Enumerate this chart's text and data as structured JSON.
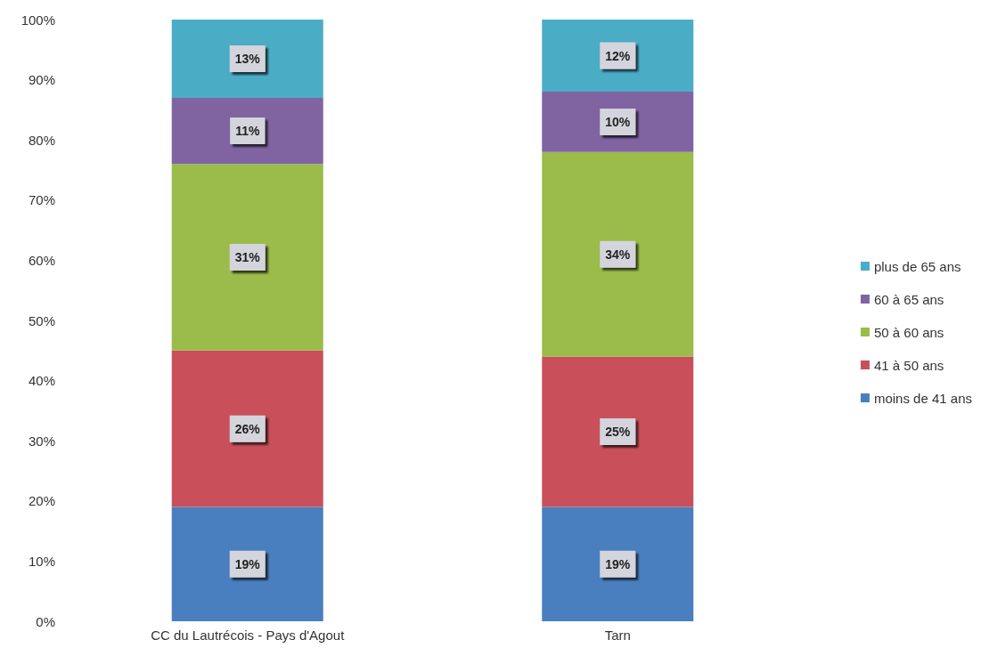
{
  "chart_data": {
    "type": "bar",
    "stacked": true,
    "categories": [
      "CC du Lautrécois - Pays d'Agout",
      "Tarn"
    ],
    "series": [
      {
        "name": "moins de 41 ans",
        "color": "#4a7fbf",
        "values": [
          19,
          19
        ],
        "value_labels": [
          "19%",
          "19%"
        ]
      },
      {
        "name": "41 à 50 ans",
        "color": "#c9505a",
        "values": [
          26,
          25
        ],
        "value_labels": [
          "26%",
          "25%"
        ]
      },
      {
        "name": "50 à 60 ans",
        "color": "#9bbb4a",
        "values": [
          31,
          34
        ],
        "value_labels": [
          "31%",
          "34%"
        ]
      },
      {
        "name": "60 à 65 ans",
        "color": "#8064a2",
        "values": [
          11,
          10
        ],
        "value_labels": [
          "11%",
          "10%"
        ]
      },
      {
        "name": "plus de 65 ans",
        "color": "#4bacc6",
        "values": [
          13,
          12
        ],
        "value_labels": [
          "13%",
          "12%"
        ]
      }
    ],
    "ylim": [
      0,
      100
    ],
    "yticks": [
      {
        "value": 0,
        "label": "0%"
      },
      {
        "value": 10,
        "label": "10%"
      },
      {
        "value": 20,
        "label": "20%"
      },
      {
        "value": 30,
        "label": "30%"
      },
      {
        "value": 40,
        "label": "40%"
      },
      {
        "value": 50,
        "label": "50%"
      },
      {
        "value": 60,
        "label": "60%"
      },
      {
        "value": 70,
        "label": "70%"
      },
      {
        "value": 80,
        "label": "80%"
      },
      {
        "value": 90,
        "label": "90%"
      },
      {
        "value": 100,
        "label": "100%"
      }
    ],
    "grid": false,
    "legend": "right"
  }
}
